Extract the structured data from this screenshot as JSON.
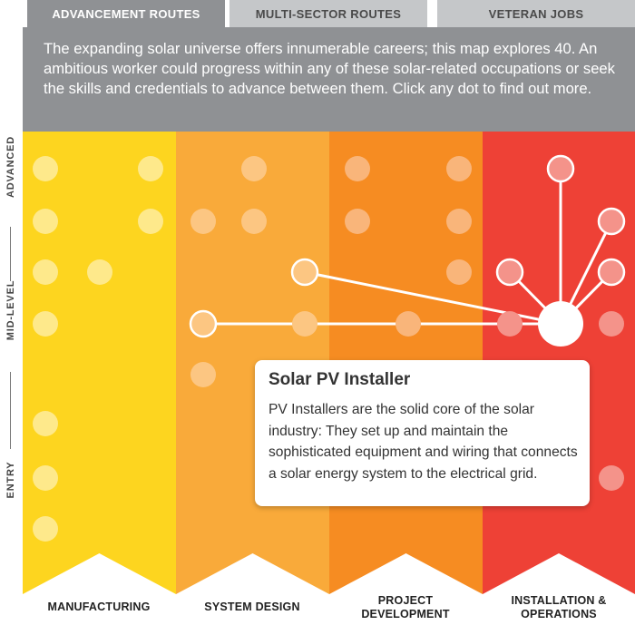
{
  "tabs": [
    {
      "label": "ADVANCEMENT ROUTES",
      "active": true
    },
    {
      "label": "MULTI-SECTOR ROUTES",
      "active": false
    },
    {
      "label": "VETERAN JOBS",
      "active": false
    }
  ],
  "intro": "The expanding solar universe offers innumerable careers; this map explores 40. An ambitious worker could progress within any of these solar-related occupations or seek the skills and credentials to advance between them. Click any dot to find out more.",
  "levels": {
    "advanced": "ADVANCED",
    "mid": "MID-LEVEL",
    "entry": "ENTRY"
  },
  "sectors": [
    {
      "line1": "MANUFACTURING",
      "line2": "",
      "color": "#fdd51f",
      "dot_color": "#fee98b"
    },
    {
      "line1": "SYSTEM DESIGN",
      "line2": "",
      "color": "#f9aa3a",
      "dot_color": "#fcc682"
    },
    {
      "line1": "PROJECT",
      "line2": "DEVELOPMENT",
      "color": "#f68c22",
      "dot_color": "#f9b57a"
    },
    {
      "line1": "INSTALLATION &",
      "line2": "OPERATIONS",
      "color": "#ee4136",
      "dot_color": "#f4938a"
    }
  ],
  "selected_career": {
    "title": "Solar PV Installer",
    "description": "PV Installers are the solid core of the solar industry: They set up and maintain the sophisticated equipment and wiring that connects a solar energy system to the electrical grid."
  }
}
